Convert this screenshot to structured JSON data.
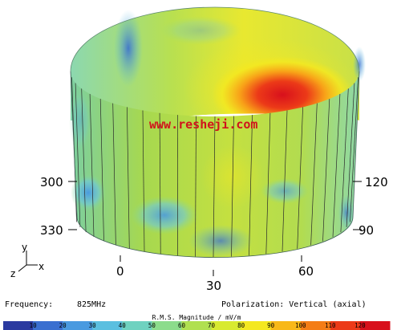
{
  "chart_data": {
    "type": "heatmap",
    "surface": "cylinder",
    "angle_labels": [
      "300",
      "330",
      "0",
      "30",
      "60",
      "90",
      "120"
    ],
    "frequency_label": "Frequency:",
    "frequency_value": "825MHz",
    "polarization_label": "Polarization: Vertical (axial)",
    "scale_title": "R.M.S. Magnitude / mV/m",
    "scale_ticks": [
      "10",
      "20",
      "30",
      "40",
      "50",
      "60",
      "70",
      "80",
      "90",
      "100",
      "110",
      "120"
    ],
    "scale_range": [
      0,
      130
    ],
    "scale_colors": [
      "#2b3aa0",
      "#3a6fd0",
      "#4a9ae0",
      "#5bbfe0",
      "#6fd2c0",
      "#8cdc8c",
      "#b0e050",
      "#d8ea30",
      "#f4e820",
      "#f8b818",
      "#f47d16",
      "#ec3a18",
      "#d8101c"
    ],
    "axis_letters": {
      "y": "y",
      "z": "z",
      "x": "x"
    },
    "watermark": "www.resheji.com"
  }
}
